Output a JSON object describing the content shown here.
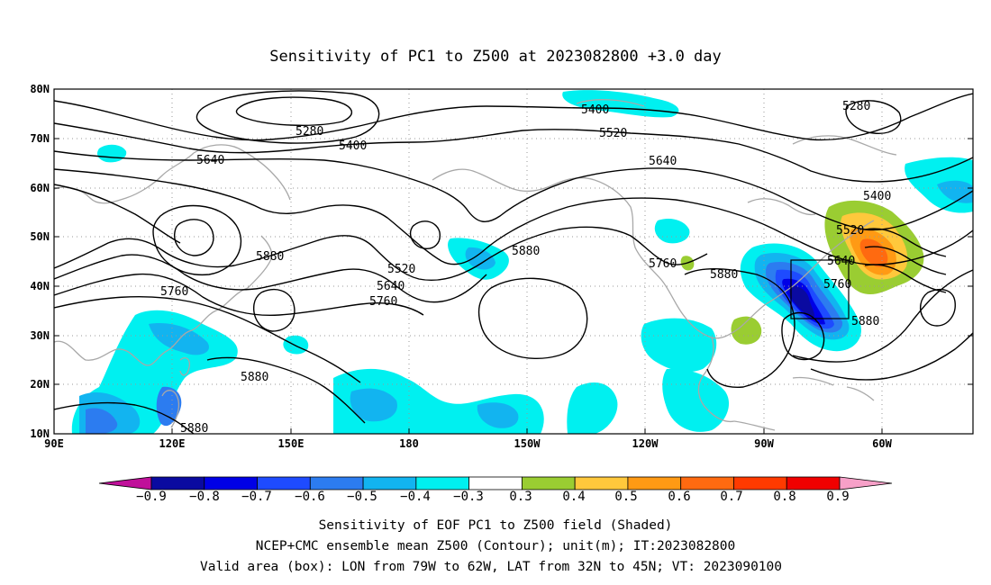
{
  "title": "Sensitivity of PC1 to Z500 at 2023082800 +3.0 day",
  "lat_ticks": [
    "80N",
    "70N",
    "60N",
    "50N",
    "40N",
    "30N",
    "20N",
    "10N"
  ],
  "lon_ticks": [
    "90E",
    "120E",
    "150E",
    "180",
    "150W",
    "120W",
    "90W",
    "60W"
  ],
  "contour_labels": [
    {
      "text": "5280"
    },
    {
      "text": "5400"
    },
    {
      "text": "5640"
    },
    {
      "text": "5400"
    },
    {
      "text": "5520"
    },
    {
      "text": "5640"
    },
    {
      "text": "5280"
    },
    {
      "text": "5400"
    },
    {
      "text": "5520"
    },
    {
      "text": "5880"
    },
    {
      "text": "5760"
    },
    {
      "text": "5520"
    },
    {
      "text": "5640"
    },
    {
      "text": "5760"
    },
    {
      "text": "5880"
    },
    {
      "text": "5760"
    },
    {
      "text": "5880"
    },
    {
      "text": "5640"
    },
    {
      "text": "5760"
    },
    {
      "text": "5880"
    },
    {
      "text": "5880"
    },
    {
      "text": "5880"
    }
  ],
  "colorbar": {
    "labels": [
      "−0.9",
      "−0.8",
      "−0.7",
      "−0.6",
      "−0.5",
      "−0.4",
      "−0.3",
      "0.3",
      "0.4",
      "0.5",
      "0.6",
      "0.7",
      "0.8",
      "0.9"
    ],
    "colors": [
      "#0a0aa0",
      "#0000e6",
      "#1e4bff",
      "#2c7cf0",
      "#12b4f0",
      "#00f0f0",
      "#ffffff",
      "#9acd32",
      "#ffc83c",
      "#ff9a14",
      "#ff6a10",
      "#ff3a00",
      "#f00000"
    ],
    "low_arrow_color": "#c0109a",
    "high_arrow_color": "#f7a0c8"
  },
  "caption": [
    "Sensitivity of EOF PC1 to Z500 field (Shaded)",
    "NCEP+CMC ensemble mean Z500 (Contour); unit(m); IT:2023082800",
    "Valid area (box): LON from 79W to 62W, LAT from 32N to 45N; VT: 2023090100"
  ]
}
